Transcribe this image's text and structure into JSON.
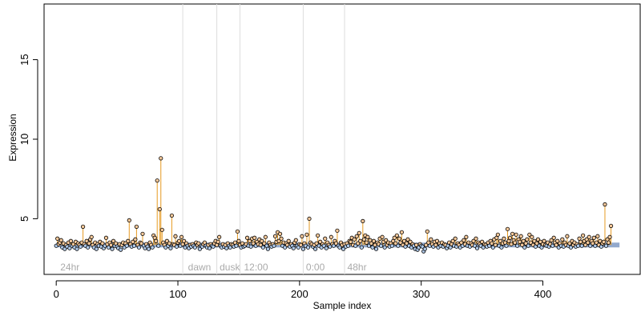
{
  "chart_data": {
    "type": "scatter",
    "xlabel": "Sample index",
    "ylabel": "Expression",
    "xlim": [
      -10,
      480
    ],
    "ylim": [
      1.5,
      18.5
    ],
    "xticks": [
      0,
      100,
      200,
      300,
      400
    ],
    "yticks": [
      5,
      10,
      15
    ],
    "baseline": 3.35,
    "grid": false,
    "colors": {
      "above_point": "#f5c89a",
      "below_point": "#aec8e8",
      "stem": "#e69a22",
      "baseline": "#93a9cc",
      "separator": "#dddddd",
      "point_border": "#000000"
    },
    "group_boundaries": [
      104,
      132,
      151,
      203,
      237
    ],
    "group_labels": [
      {
        "label": "24hr",
        "x": 2
      },
      {
        "label": "dawn",
        "x": 107
      },
      {
        "label": "dusk",
        "x": 133
      },
      {
        "label": "12:00",
        "x": 153
      },
      {
        "label": "0:00",
        "x": 204
      },
      {
        "label": "48hr",
        "x": 238
      }
    ],
    "n_points": 464,
    "y": [
      3.3,
      3.75,
      3.4,
      3.5,
      3.65,
      3.2,
      3.45,
      3.1,
      3.35,
      3.25,
      3.5,
      3.15,
      3.6,
      3.3,
      3.4,
      3.2,
      3.55,
      3.1,
      3.45,
      3.35,
      3.25,
      3.5,
      4.5,
      3.4,
      3.3,
      3.6,
      3.2,
      3.45,
      3.7,
      3.85,
      3.35,
      3.2,
      3.5,
      3.1,
      3.4,
      3.3,
      3.55,
      3.25,
      3.45,
      3.15,
      3.3,
      3.8,
      3.4,
      3.2,
      3.5,
      3.35,
      3.1,
      3.6,
      3.3,
      3.45,
      3.25,
      3.15,
      3.4,
      3.05,
      3.35,
      3.5,
      3.2,
      3.45,
      3.3,
      3.6,
      4.9,
      3.4,
      3.25,
      3.55,
      3.3,
      3.7,
      4.5,
      3.35,
      3.2,
      3.5,
      3.45,
      4.05,
      3.3,
      3.15,
      3.4,
      3.25,
      3.1,
      3.5,
      3.35,
      3.2,
      3.95,
      3.8,
      3.6,
      7.4,
      3.3,
      5.6,
      8.8,
      4.3,
      3.5,
      3.35,
      3.2,
      3.6,
      3.3,
      3.45,
      3.15,
      5.2,
      3.4,
      3.35,
      3.9,
      3.25,
      3.5,
      3.6,
      3.3,
      3.85,
      3.4,
      3.6,
      3.2,
      3.45,
      3.3,
      3.15,
      3.35,
      3.25,
      3.4,
      3.3,
      3.2,
      3.5,
      3.35,
      3.45,
      3.1,
      3.3,
      3.25,
      3.4,
      3.5,
      3.3,
      3.2,
      3.35,
      3.15,
      3.4,
      3.3,
      3.25,
      3.45,
      3.6,
      3.35,
      3.55,
      3.85,
      3.3,
      3.2,
      3.4,
      3.25,
      3.35,
      3.15,
      3.45,
      3.3,
      3.2,
      3.4,
      3.35,
      3.25,
      3.5,
      3.3,
      4.2,
      3.6,
      3.35,
      3.2,
      3.45,
      3.25,
      3.3,
      3.4,
      3.8,
      3.3,
      3.6,
      3.25,
      3.75,
      3.45,
      3.8,
      3.3,
      3.55,
      3.4,
      3.7,
      3.35,
      3.6,
      3.2,
      3.45,
      3.85,
      3.3,
      3.1,
      3.5,
      3.35,
      3.25,
      3.4,
      3.3,
      3.9,
      3.55,
      4.15,
      3.6,
      4.05,
      3.75,
      3.3,
      3.5,
      3.2,
      3.45,
      3.35,
      3.6,
      3.25,
      3.4,
      3.3,
      3.15,
      3.5,
      3.65,
      3.3,
      3.2,
      3.4,
      3.35,
      3.9,
      3.1,
      3.45,
      3.3,
      4.0,
      3.2,
      5.0,
      3.5,
      3.4,
      3.25,
      3.35,
      3.1,
      3.45,
      3.95,
      3.3,
      3.55,
      3.2,
      3.4,
      3.3,
      3.75,
      3.15,
      3.5,
      3.35,
      3.25,
      3.85,
      3.4,
      3.3,
      3.6,
      3.45,
      4.25,
      3.3,
      3.2,
      3.5,
      3.35,
      3.1,
      3.4,
      3.25,
      3.45,
      3.3,
      3.6,
      3.55,
      3.8,
      3.35,
      3.7,
      3.3,
      3.9,
      3.45,
      4.1,
      3.6,
      3.2,
      4.85,
      3.7,
      3.95,
      3.5,
      3.85,
      3.3,
      3.65,
      3.45,
      3.2,
      3.6,
      3.35,
      3.1,
      3.5,
      3.4,
      3.75,
      3.3,
      3.85,
      3.55,
      3.2,
      3.65,
      3.35,
      3.5,
      3.25,
      3.45,
      3.3,
      3.6,
      3.8,
      3.45,
      3.95,
      3.3,
      3.75,
      3.5,
      4.15,
      3.35,
      3.6,
      3.25,
      3.45,
      3.7,
      3.3,
      3.55,
      3.2,
      3.4,
      3.3,
      3.1,
      3.35,
      3.05,
      3.2,
      3.4,
      3.3,
      3.25,
      2.95,
      3.1,
      3.35,
      4.2,
      3.5,
      3.3,
      3.7,
      3.4,
      3.25,
      3.55,
      3.35,
      3.6,
      3.2,
      3.45,
      3.3,
      3.5,
      3.25,
      3.4,
      3.35,
      3.15,
      3.3,
      3.5,
      3.2,
      3.4,
      3.6,
      3.3,
      3.75,
      3.25,
      3.45,
      3.35,
      3.2,
      3.5,
      3.3,
      3.65,
      3.4,
      3.85,
      3.3,
      3.5,
      3.25,
      3.45,
      3.35,
      3.6,
      3.3,
      3.75,
      3.15,
      3.5,
      3.4,
      3.3,
      3.55,
      3.2,
      3.4,
      3.35,
      3.25,
      3.5,
      3.3,
      3.6,
      3.45,
      3.2,
      3.7,
      3.35,
      3.8,
      4.0,
      3.3,
      3.6,
      3.2,
      3.45,
      3.75,
      3.5,
      3.3,
      4.35,
      3.6,
      3.8,
      3.4,
      4.05,
      3.65,
      3.5,
      4.0,
      3.3,
      3.7,
      3.55,
      3.9,
      3.35,
      3.6,
      3.2,
      3.45,
      3.7,
      3.3,
      4.0,
      3.5,
      3.85,
      3.35,
      3.6,
      3.25,
      3.45,
      3.7,
      3.3,
      3.55,
      3.2,
      3.4,
      3.6,
      3.35,
      3.3,
      3.5,
      3.25,
      3.4,
      3.65,
      3.3,
      3.8,
      3.5,
      3.35,
      3.6,
      3.2,
      3.45,
      3.3,
      3.7,
      3.25,
      3.5,
      3.35,
      3.9,
      3.3,
      3.45,
      3.2,
      3.6,
      3.35,
      3.5,
      3.25,
      3.4,
      3.3,
      3.75,
      3.55,
      3.3,
      3.95,
      3.6,
      3.35,
      3.7,
      3.5,
      3.85,
      3.3,
      3.6,
      3.45,
      3.8,
      3.3,
      3.5,
      3.9,
      3.35,
      3.6,
      3.25,
      3.45,
      3.55,
      5.9,
      3.3,
      3.7,
      3.5,
      3.85,
      4.55
    ]
  }
}
